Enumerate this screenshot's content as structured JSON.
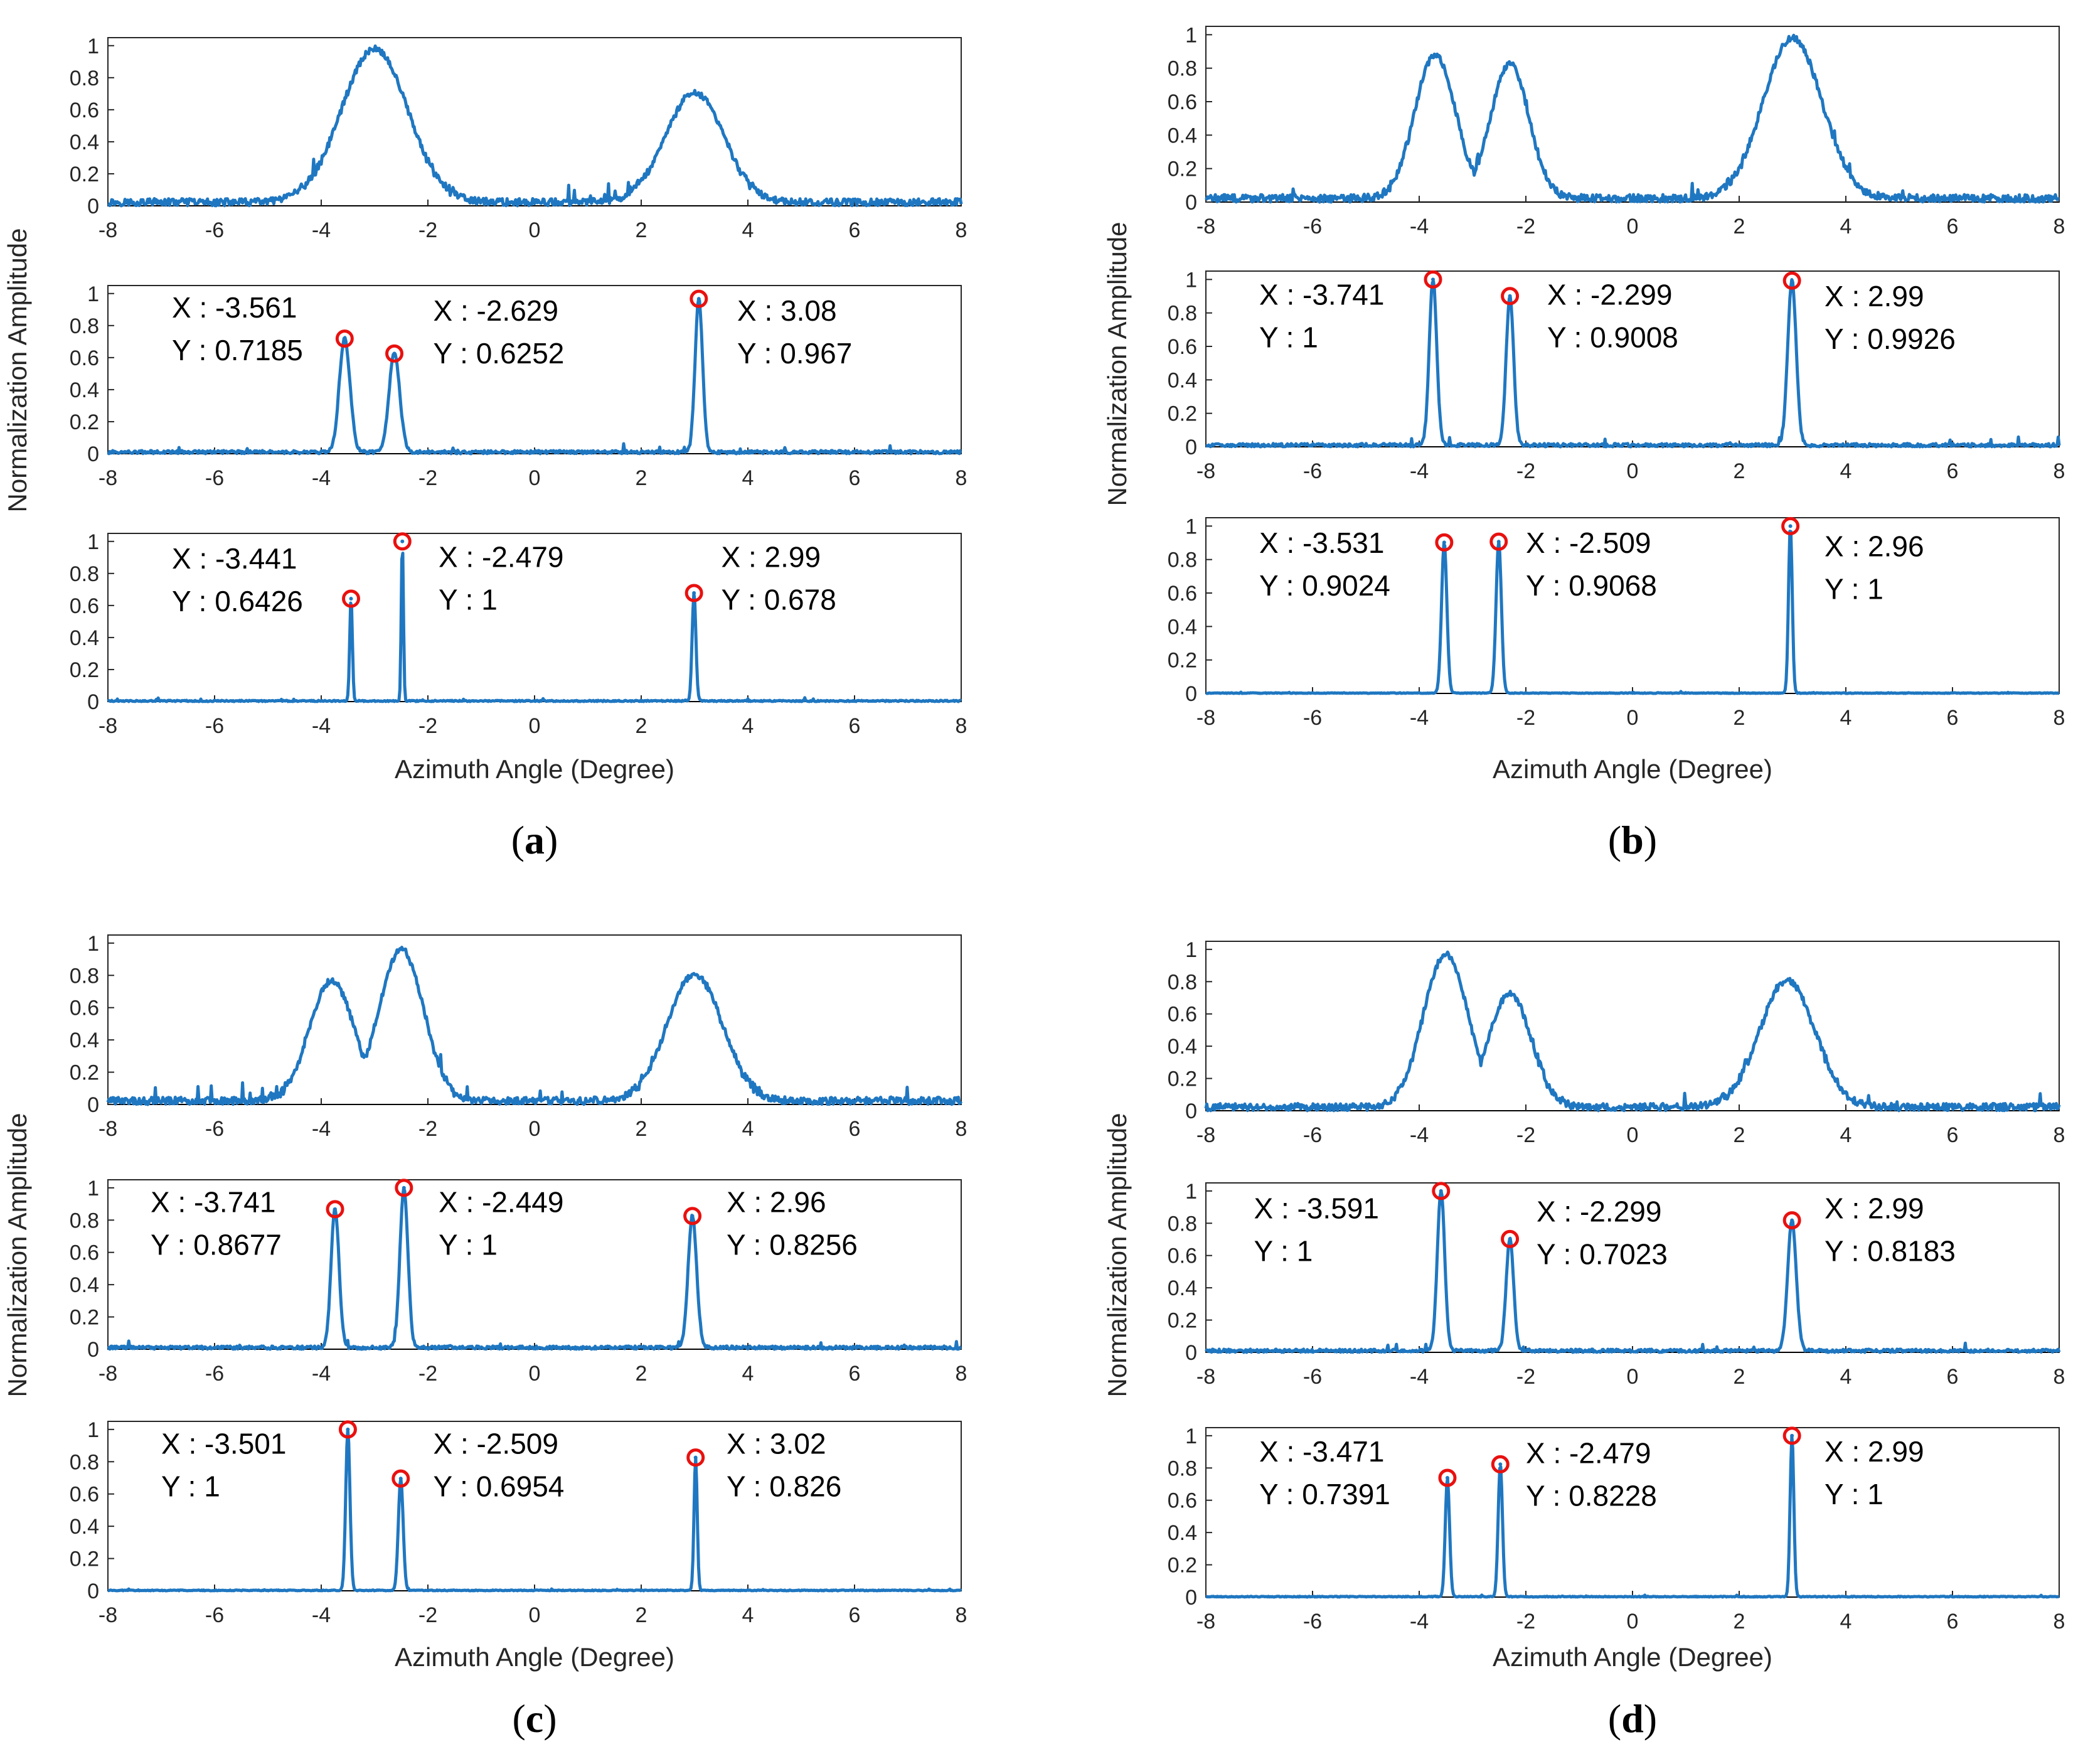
{
  "colors": {
    "line": "#1f77c1",
    "marker": "#e8110f",
    "axis": "#262626",
    "text": "#000000"
  },
  "chart_data": [
    {
      "panel": "a",
      "caption": {
        "open": "(",
        "letter": "a",
        "close": ")"
      },
      "type": "line",
      "xlabel": "Azimuth Angle (Degree)",
      "ylabel": "Normalization Amplitude",
      "xlim": [
        -8,
        8
      ],
      "ylim": [
        0,
        1.05
      ],
      "xticks": [
        "-8",
        "-6",
        "-4",
        "-2",
        "0",
        "2",
        "4",
        "6",
        "8"
      ],
      "yticks": [
        "0",
        "0.2",
        "0.4",
        "0.6",
        "0.8",
        "1"
      ],
      "subplots": [
        {
          "peaks": [
            [
              -3.0,
              0.98,
              0.62
            ],
            [
              3.0,
              0.7,
              0.55
            ]
          ],
          "noise": 0.045
        },
        {
          "peaks": [
            [
              -3.561,
              0.7185,
              0.1
            ],
            [
              -2.629,
              0.6252,
              0.1
            ],
            [
              3.08,
              0.967,
              0.07
            ]
          ],
          "noise": 0.02,
          "markers": [
            {
              "x": -3.561,
              "y": 0.7185
            },
            {
              "x": -2.629,
              "y": 0.6252
            },
            {
              "x": 3.08,
              "y": 0.967
            }
          ],
          "annotations": [
            {
              "x": -6.8,
              "y": 0.85,
              "X": "X : -3.561",
              "Y": "Y : 0.7185"
            },
            {
              "x": -1.9,
              "y": 0.83,
              "X": "X : -2.629",
              "Y": "Y : 0.6252"
            },
            {
              "x": 3.8,
              "y": 0.83,
              "X": "X : 3.08",
              "Y": "Y : 0.967"
            }
          ]
        },
        {
          "peaks": [
            [
              -3.441,
              0.6426,
              0.025
            ],
            [
              -2.479,
              1,
              0.02
            ],
            [
              2.99,
              0.678,
              0.035
            ]
          ],
          "noise": 0.008,
          "markers": [
            {
              "x": -3.441,
              "y": 0.6426
            },
            {
              "x": -2.479,
              "y": 1
            },
            {
              "x": 2.99,
              "y": 0.678
            }
          ],
          "annotations": [
            {
              "x": -6.8,
              "y": 0.83,
              "X": "X : -3.441",
              "Y": "Y : 0.6426"
            },
            {
              "x": -1.8,
              "y": 0.84,
              "X": "X : -2.479",
              "Y": "Y : 1"
            },
            {
              "x": 3.5,
              "y": 0.84,
              "X": "X : 2.99",
              "Y": "Y : 0.678"
            }
          ]
        }
      ]
    },
    {
      "panel": "b",
      "caption": {
        "open": "(",
        "letter": "b",
        "close": ")"
      },
      "type": "line",
      "xlabel": "Azimuth Angle (Degree)",
      "ylabel": "Normalization Amplitude",
      "xlim": [
        -8,
        8
      ],
      "ylim": [
        0,
        1.05
      ],
      "xticks": [
        "-8",
        "-6",
        "-4",
        "-2",
        "0",
        "2",
        "4",
        "6",
        "8"
      ],
      "yticks": [
        "0",
        "0.2",
        "0.4",
        "0.6",
        "0.8",
        "1"
      ],
      "subplots": [
        {
          "peaks": [
            [
              -3.7,
              0.88,
              0.38
            ],
            [
              -2.3,
              0.82,
              0.36
            ],
            [
              3.0,
              0.98,
              0.55
            ]
          ],
          "noise": 0.045
        },
        {
          "peaks": [
            [
              -3.741,
              1,
              0.07
            ],
            [
              -2.299,
              0.9008,
              0.07
            ],
            [
              2.99,
              0.9926,
              0.08
            ]
          ],
          "noise": 0.02,
          "markers": [
            {
              "x": -3.741,
              "y": 1
            },
            {
              "x": -2.299,
              "y": 0.9008
            },
            {
              "x": 2.99,
              "y": 0.9926
            }
          ],
          "annotations": [
            {
              "x": -7.0,
              "y": 0.85,
              "X": "X : -3.741",
              "Y": "Y : 1"
            },
            {
              "x": -1.6,
              "y": 0.85,
              "X": "X : -2.299",
              "Y": "Y : 0.9008"
            },
            {
              "x": 3.6,
              "y": 0.84,
              "X": "X : 2.99",
              "Y": "Y : 0.9926"
            }
          ]
        },
        {
          "peaks": [
            [
              -3.531,
              0.9024,
              0.05
            ],
            [
              -2.509,
              0.9068,
              0.05
            ],
            [
              2.96,
              1,
              0.035
            ]
          ],
          "noise": 0.004,
          "markers": [
            {
              "x": -3.531,
              "y": 0.9024
            },
            {
              "x": -2.509,
              "y": 0.9068
            },
            {
              "x": 2.96,
              "y": 1
            }
          ],
          "annotations": [
            {
              "x": -7.0,
              "y": 0.84,
              "X": "X : -3.531",
              "Y": "Y : 0.9024"
            },
            {
              "x": -2.0,
              "y": 0.84,
              "X": "X : -2.509",
              "Y": "Y : 0.9068"
            },
            {
              "x": 3.6,
              "y": 0.82,
              "X": "X : 2.96",
              "Y": "Y : 1"
            }
          ]
        }
      ]
    },
    {
      "panel": "c",
      "caption": {
        "open": "(",
        "letter": "c",
        "close": ")"
      },
      "type": "line",
      "xlabel": "Azimuth Angle (Degree)",
      "ylabel": "Normalization Amplitude",
      "xlim": [
        -8,
        8
      ],
      "ylim": [
        0,
        1.05
      ],
      "xticks": [
        "-8",
        "-6",
        "-4",
        "-2",
        "0",
        "2",
        "4",
        "6",
        "8"
      ],
      "yticks": [
        "0",
        "0.2",
        "0.4",
        "0.6",
        "0.8",
        "1"
      ],
      "subplots": [
        {
          "peaks": [
            [
              -3.8,
              0.76,
              0.42
            ],
            [
              -2.5,
              0.96,
              0.42
            ],
            [
              3.0,
              0.8,
              0.52
            ]
          ],
          "noise": 0.045
        },
        {
          "peaks": [
            [
              -3.741,
              0.8677,
              0.075
            ],
            [
              -2.449,
              1,
              0.075
            ],
            [
              2.96,
              0.8256,
              0.08
            ]
          ],
          "noise": 0.02,
          "markers": [
            {
              "x": -3.741,
              "y": 0.8677
            },
            {
              "x": -2.449,
              "y": 1
            },
            {
              "x": 2.96,
              "y": 0.8256
            }
          ],
          "annotations": [
            {
              "x": -7.2,
              "y": 0.85,
              "X": "X : -3.741",
              "Y": "Y : 0.8677"
            },
            {
              "x": -1.8,
              "y": 0.85,
              "X": "X : -2.449",
              "Y": "Y : 1"
            },
            {
              "x": 3.6,
              "y": 0.85,
              "X": "X : 2.96",
              "Y": "Y : 0.8256"
            }
          ]
        },
        {
          "peaks": [
            [
              -3.501,
              1,
              0.04
            ],
            [
              -2.509,
              0.6954,
              0.045
            ],
            [
              3.02,
              0.826,
              0.03
            ]
          ],
          "noise": 0.005,
          "markers": [
            {
              "x": -3.501,
              "y": 1
            },
            {
              "x": -2.509,
              "y": 0.6954
            },
            {
              "x": 3.02,
              "y": 0.826
            }
          ],
          "annotations": [
            {
              "x": -7.0,
              "y": 0.85,
              "X": "X : -3.501",
              "Y": "Y : 1"
            },
            {
              "x": -1.9,
              "y": 0.85,
              "X": "X : -2.509",
              "Y": "Y : 0.6954"
            },
            {
              "x": 3.6,
              "y": 0.85,
              "X": "X : 3.02",
              "Y": "Y : 0.826"
            }
          ]
        }
      ]
    },
    {
      "panel": "d",
      "caption": {
        "open": "(",
        "letter": "d",
        "close": ")"
      },
      "type": "line",
      "xlabel": "Azimuth Angle (Degree)",
      "ylabel": "Normalization Amplitude",
      "xlim": [
        -8,
        8
      ],
      "ylim": [
        0,
        1.05
      ],
      "xticks": [
        "-8",
        "-6",
        "-4",
        "-2",
        "0",
        "2",
        "4",
        "6",
        "8"
      ],
      "yticks": [
        "0",
        "0.2",
        "0.4",
        "0.6",
        "0.8",
        "1"
      ],
      "subplots": [
        {
          "peaks": [
            [
              -3.5,
              0.97,
              0.42
            ],
            [
              -2.3,
              0.72,
              0.4
            ],
            [
              2.9,
              0.8,
              0.52
            ]
          ],
          "noise": 0.045
        },
        {
          "peaks": [
            [
              -3.591,
              1,
              0.07
            ],
            [
              -2.299,
              0.7023,
              0.07
            ],
            [
              2.99,
              0.8183,
              0.08
            ]
          ],
          "noise": 0.02,
          "markers": [
            {
              "x": -3.591,
              "y": 1
            },
            {
              "x": -2.299,
              "y": 0.7023
            },
            {
              "x": 2.99,
              "y": 0.8183
            }
          ],
          "annotations": [
            {
              "x": -7.1,
              "y": 0.83,
              "X": "X : -3.591",
              "Y": "Y : 1"
            },
            {
              "x": -1.8,
              "y": 0.81,
              "X": "X : -2.299",
              "Y": "Y : 0.7023"
            },
            {
              "x": 3.6,
              "y": 0.83,
              "X": "X : 2.99",
              "Y": "Y : 0.8183"
            }
          ]
        },
        {
          "peaks": [
            [
              -3.471,
              0.7391,
              0.04
            ],
            [
              -2.479,
              0.8228,
              0.04
            ],
            [
              2.99,
              1,
              0.035
            ]
          ],
          "noise": 0.005,
          "markers": [
            {
              "x": -3.471,
              "y": 0.7391
            },
            {
              "x": -2.479,
              "y": 0.8228
            },
            {
              "x": 2.99,
              "y": 1
            }
          ],
          "annotations": [
            {
              "x": -7.0,
              "y": 0.84,
              "X": "X : -3.471",
              "Y": "Y : 0.7391"
            },
            {
              "x": -2.0,
              "y": 0.83,
              "X": "X : -2.479",
              "Y": "Y : 0.8228"
            },
            {
              "x": 3.6,
              "y": 0.84,
              "X": "X : 2.99",
              "Y": "Y : 1"
            }
          ]
        }
      ]
    }
  ]
}
